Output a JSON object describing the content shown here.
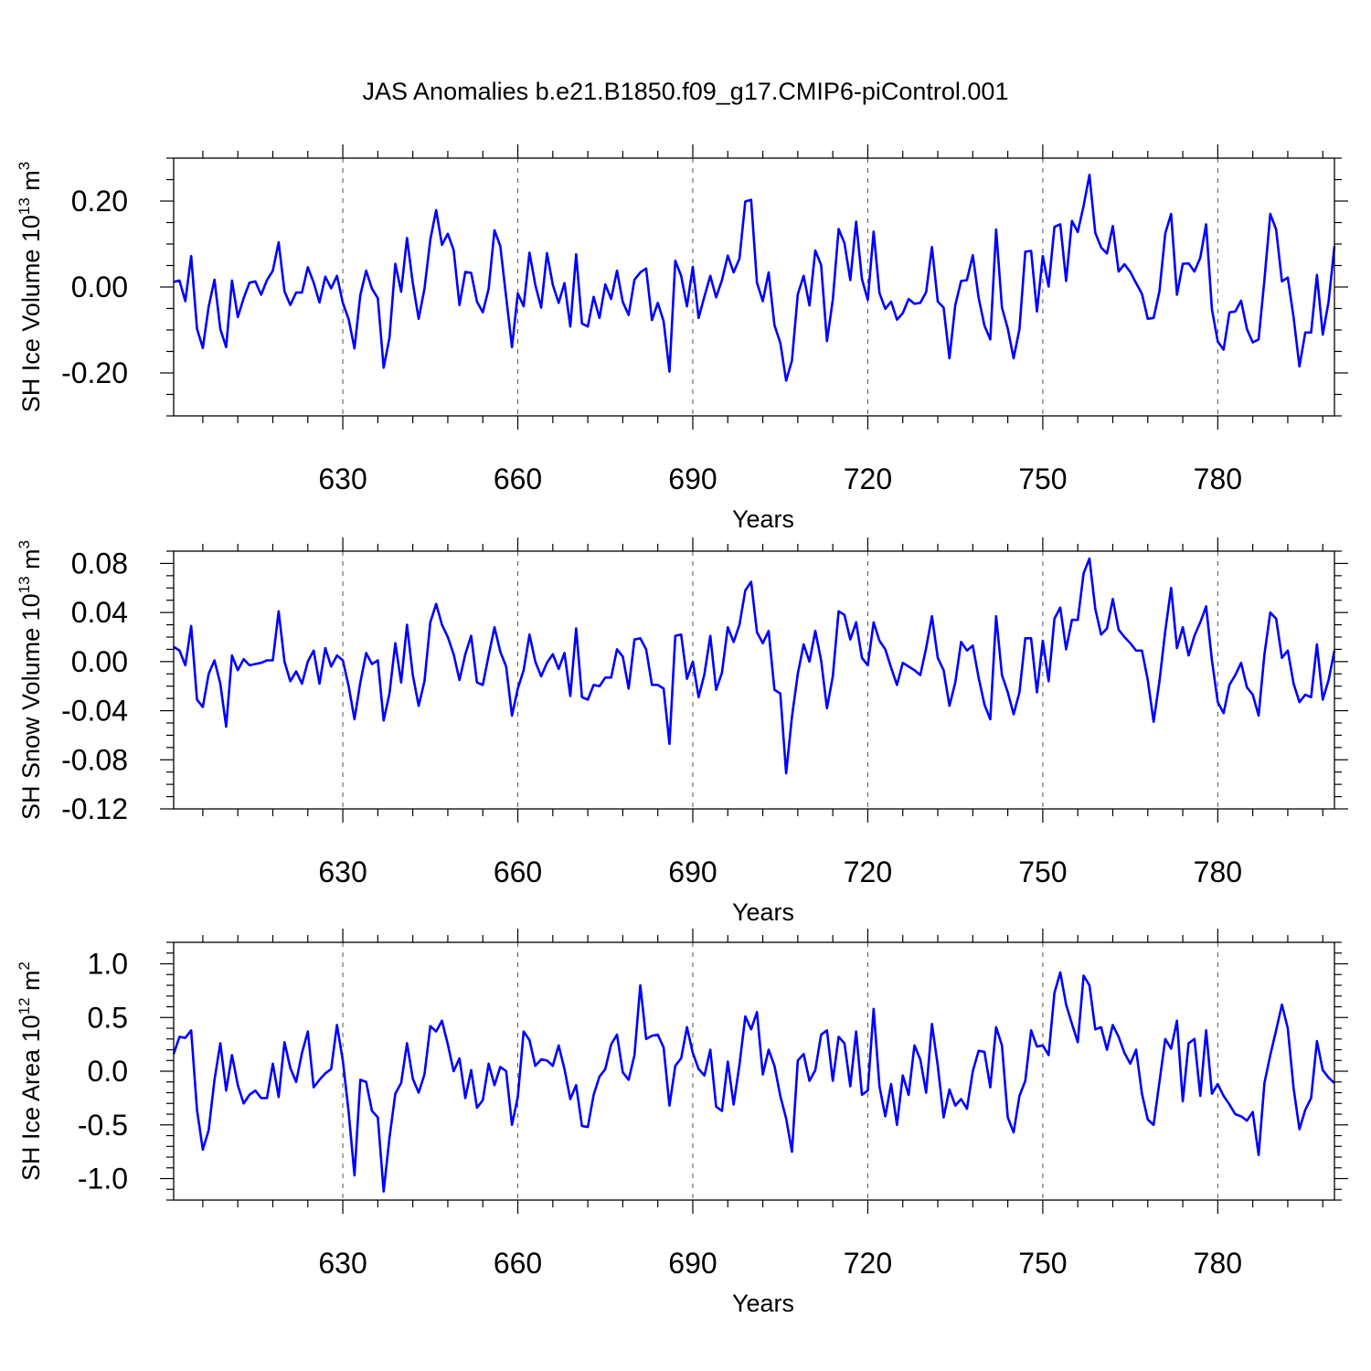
{
  "title": "JAS Anomalies b.e21.B1850.f09_g17.CMIP6-piControl.001",
  "line_color": "#0000ff",
  "chart_data": [
    {
      "type": "line",
      "ylabel": "SH Ice Volume 10",
      "ylabel_exp": "13",
      "ylabel_unit": " m",
      "ylabel_unit_exp": "3",
      "xlabel": "Years",
      "xlim": [
        601,
        800
      ],
      "ylim": [
        -0.3,
        0.3
      ],
      "xticks": [
        630,
        660,
        690,
        720,
        750,
        780
      ],
      "xtick_labels": [
        "630",
        "660",
        "690",
        "720",
        "750",
        "780"
      ],
      "yticks": [
        0.2,
        0.0,
        -0.2
      ],
      "ytick_labels": [
        "0.20",
        "0.00",
        "-0.20"
      ],
      "yminor_step": 0.05,
      "grid": "vertical dashed at major x ticks",
      "x_start": 601,
      "series": [
        {
          "name": "SH Ice Volume",
          "values": [
            0.012,
            0.015,
            -0.033,
            0.072,
            -0.097,
            -0.142,
            -0.046,
            0.017,
            -0.098,
            -0.14,
            0.015,
            -0.07,
            -0.026,
            0.01,
            0.013,
            -0.018,
            0.016,
            0.038,
            0.104,
            -0.01,
            -0.042,
            -0.013,
            -0.013,
            0.046,
            0.01,
            -0.036,
            0.024,
            -0.003,
            0.026,
            -0.037,
            -0.075,
            -0.143,
            -0.019,
            0.038,
            -0.004,
            -0.026,
            -0.188,
            -0.118,
            0.054,
            -0.011,
            0.114,
            0.009,
            -0.074,
            -0.004,
            0.11,
            0.179,
            0.098,
            0.124,
            0.086,
            -0.042,
            0.035,
            0.033,
            -0.034,
            -0.059,
            -0.004,
            0.132,
            0.095,
            -0.023,
            -0.14,
            -0.015,
            -0.045,
            0.08,
            0.005,
            -0.048,
            0.079,
            0.005,
            -0.037,
            0.009,
            -0.092,
            0.076,
            -0.085,
            -0.092,
            -0.023,
            -0.072,
            0.006,
            -0.028,
            0.038,
            -0.035,
            -0.065,
            0.017,
            0.034,
            0.043,
            -0.077,
            -0.037,
            -0.08,
            -0.197,
            0.061,
            0.026,
            -0.045,
            0.047,
            -0.072,
            -0.022,
            0.026,
            -0.024,
            0.016,
            0.073,
            0.034,
            0.066,
            0.199,
            0.203,
            0.01,
            -0.033,
            0.034,
            -0.089,
            -0.13,
            -0.218,
            -0.171,
            -0.017,
            0.026,
            -0.043,
            0.085,
            0.051,
            -0.126,
            -0.03,
            0.135,
            0.102,
            0.016,
            0.152,
            0.018,
            -0.03,
            0.129,
            -0.014,
            -0.051,
            -0.034,
            -0.076,
            -0.061,
            -0.028,
            -0.039,
            -0.037,
            -0.012,
            0.093,
            -0.034,
            -0.048,
            -0.166,
            -0.042,
            0.014,
            0.016,
            0.074,
            -0.025,
            -0.09,
            -0.122,
            0.134,
            -0.048,
            -0.097,
            -0.166,
            -0.098,
            0.082,
            0.084,
            -0.057,
            0.072,
            0.001,
            0.14,
            0.146,
            0.014,
            0.154,
            0.128,
            0.189,
            0.261,
            0.126,
            0.092,
            0.078,
            0.142,
            0.036,
            0.053,
            0.035,
            0.009,
            -0.016,
            -0.074,
            -0.072,
            -0.01,
            0.125,
            0.17,
            -0.018,
            0.054,
            0.055,
            0.036,
            0.068,
            0.146,
            -0.052,
            -0.127,
            -0.146,
            -0.059,
            -0.057,
            -0.032,
            -0.098,
            -0.129,
            -0.122,
            0.017,
            0.17,
            0.134,
            0.013,
            0.022,
            -0.071,
            -0.185,
            -0.106,
            -0.106,
            0.028,
            -0.111,
            -0.034,
            0.095
          ]
        }
      ]
    },
    {
      "type": "line",
      "ylabel": "SH Snow Volume 10",
      "ylabel_exp": "13",
      "ylabel_unit": " m",
      "ylabel_unit_exp": "3",
      "xlabel": "Years",
      "xlim": [
        601,
        800
      ],
      "ylim": [
        -0.12,
        0.09
      ],
      "xticks": [
        630,
        660,
        690,
        720,
        750,
        780
      ],
      "xtick_labels": [
        "630",
        "660",
        "690",
        "720",
        "750",
        "780"
      ],
      "yticks": [
        0.08,
        0.04,
        0.0,
        -0.04,
        -0.08,
        -0.12
      ],
      "ytick_labels": [
        "0.08",
        "0.04",
        "0.00",
        "-0.04",
        "-0.08",
        "-0.12"
      ],
      "yminor_step": 0.01,
      "grid": "vertical dashed at major x ticks",
      "x_start": 601,
      "series": [
        {
          "name": "SH Snow Volume",
          "values": [
            0.012,
            0.009,
            -0.003,
            0.029,
            -0.031,
            -0.037,
            -0.01,
            0.001,
            -0.018,
            -0.053,
            0.005,
            -0.007,
            0.002,
            -0.003,
            -0.002,
            -0.001,
            0.001,
            0.001,
            0.041,
            0.0,
            -0.016,
            -0.008,
            -0.018,
            0.0,
            0.009,
            -0.018,
            0.011,
            -0.004,
            0.005,
            0.001,
            -0.02,
            -0.047,
            -0.017,
            0.007,
            -0.002,
            0.001,
            -0.048,
            -0.026,
            0.015,
            -0.017,
            0.03,
            -0.011,
            -0.036,
            -0.016,
            0.032,
            0.047,
            0.03,
            0.02,
            0.006,
            -0.015,
            0.006,
            0.021,
            -0.017,
            -0.019,
            0.005,
            0.028,
            0.008,
            -0.004,
            -0.044,
            -0.022,
            -0.007,
            0.022,
            0.0,
            -0.012,
            -0.001,
            0.006,
            -0.006,
            0.007,
            -0.028,
            0.027,
            -0.029,
            -0.031,
            -0.019,
            -0.02,
            -0.013,
            -0.013,
            0.01,
            0.004,
            -0.022,
            0.018,
            0.019,
            0.01,
            -0.019,
            -0.019,
            -0.022,
            -0.067,
            0.021,
            0.022,
            -0.014,
            0.0,
            -0.029,
            -0.01,
            0.021,
            -0.023,
            -0.009,
            0.028,
            0.016,
            0.03,
            0.058,
            0.065,
            0.024,
            0.015,
            0.025,
            -0.023,
            -0.026,
            -0.091,
            -0.045,
            -0.01,
            0.014,
            0.0,
            0.025,
            0.001,
            -0.038,
            -0.012,
            0.041,
            0.038,
            0.018,
            0.032,
            0.003,
            -0.003,
            0.032,
            0.017,
            0.01,
            -0.005,
            -0.019,
            -0.001,
            -0.004,
            -0.007,
            -0.011,
            0.011,
            0.037,
            0.003,
            -0.007,
            -0.036,
            -0.017,
            0.016,
            0.009,
            0.013,
            -0.013,
            -0.035,
            -0.047,
            0.037,
            -0.011,
            -0.025,
            -0.043,
            -0.025,
            0.019,
            0.019,
            -0.025,
            0.017,
            -0.016,
            0.035,
            0.044,
            0.01,
            0.034,
            0.034,
            0.072,
            0.084,
            0.043,
            0.022,
            0.027,
            0.051,
            0.026,
            0.02,
            0.015,
            0.009,
            0.009,
            -0.015,
            -0.049,
            -0.016,
            0.025,
            0.06,
            0.011,
            0.028,
            0.005,
            0.021,
            0.032,
            0.045,
            0.001,
            -0.033,
            -0.042,
            -0.019,
            -0.011,
            -0.001,
            -0.021,
            -0.027,
            -0.044,
            0.006,
            0.04,
            0.035,
            0.003,
            0.009,
            -0.018,
            -0.033,
            -0.027,
            -0.029,
            0.014,
            -0.031,
            -0.015,
            0.009
          ]
        }
      ]
    },
    {
      "type": "line",
      "ylabel": "SH Ice Area 10",
      "ylabel_exp": "12",
      "ylabel_unit": " m",
      "ylabel_unit_exp": "2",
      "xlabel": "Years",
      "xlim": [
        601,
        800
      ],
      "ylim": [
        -1.2,
        1.2
      ],
      "xticks": [
        630,
        660,
        690,
        720,
        750,
        780
      ],
      "xtick_labels": [
        "630",
        "660",
        "690",
        "720",
        "750",
        "780"
      ],
      "yticks": [
        1.0,
        0.5,
        0.0,
        -0.5,
        -1.0
      ],
      "ytick_labels": [
        "1.0",
        "0.5",
        "0.0",
        "-0.5",
        "-1.0"
      ],
      "yminor_step": 0.1,
      "grid": "vertical dashed at major x ticks",
      "x_start": 601,
      "series": [
        {
          "name": "SH Ice Area",
          "values": [
            0.16,
            0.32,
            0.31,
            0.38,
            -0.36,
            -0.73,
            -0.55,
            -0.08,
            0.26,
            -0.18,
            0.15,
            -0.13,
            -0.3,
            -0.22,
            -0.18,
            -0.25,
            -0.25,
            0.07,
            -0.24,
            0.27,
            0.03,
            -0.1,
            0.17,
            0.37,
            -0.15,
            -0.08,
            -0.02,
            0.02,
            0.43,
            0.1,
            -0.38,
            -0.97,
            -0.08,
            -0.1,
            -0.37,
            -0.43,
            -1.12,
            -0.62,
            -0.21,
            -0.11,
            0.26,
            -0.07,
            -0.2,
            -0.03,
            0.42,
            0.37,
            0.47,
            0.25,
            0.0,
            0.12,
            -0.25,
            0.01,
            -0.34,
            -0.27,
            0.07,
            -0.13,
            0.04,
            0.0,
            -0.5,
            -0.24,
            0.37,
            0.29,
            0.05,
            0.11,
            0.1,
            0.05,
            0.24,
            0.02,
            -0.26,
            -0.13,
            -0.51,
            -0.52,
            -0.22,
            -0.05,
            0.02,
            0.25,
            0.34,
            -0.01,
            -0.08,
            0.15,
            0.8,
            0.3,
            0.33,
            0.34,
            0.22,
            -0.32,
            0.05,
            0.12,
            0.41,
            0.17,
            0.02,
            -0.04,
            0.2,
            -0.33,
            -0.37,
            0.09,
            -0.31,
            0.06,
            0.51,
            0.39,
            0.55,
            -0.03,
            0.2,
            0.05,
            -0.23,
            -0.44,
            -0.75,
            0.1,
            0.16,
            -0.09,
            0.01,
            0.34,
            0.38,
            -0.09,
            0.32,
            0.26,
            -0.14,
            0.37,
            -0.22,
            -0.18,
            0.58,
            -0.14,
            -0.42,
            -0.12,
            -0.5,
            -0.04,
            -0.22,
            0.24,
            0.11,
            -0.2,
            0.44,
            0.05,
            -0.43,
            -0.17,
            -0.32,
            -0.26,
            -0.35,
            0.0,
            0.19,
            0.18,
            -0.15,
            0.41,
            0.24,
            -0.43,
            -0.57,
            -0.23,
            -0.09,
            0.38,
            0.23,
            0.24,
            0.15,
            0.73,
            0.92,
            0.62,
            0.44,
            0.27,
            0.89,
            0.8,
            0.39,
            0.41,
            0.2,
            0.43,
            0.32,
            0.17,
            0.07,
            0.2,
            -0.21,
            -0.45,
            -0.5,
            -0.1,
            0.3,
            0.21,
            0.47,
            -0.28,
            0.26,
            0.3,
            -0.23,
            0.38,
            -0.21,
            -0.12,
            -0.23,
            -0.31,
            -0.4,
            -0.42,
            -0.46,
            -0.38,
            -0.78,
            -0.11,
            0.15,
            0.38,
            0.62,
            0.4,
            -0.16,
            -0.54,
            -0.36,
            -0.25,
            0.28,
            0.01,
            -0.06,
            -0.11
          ]
        }
      ]
    }
  ]
}
